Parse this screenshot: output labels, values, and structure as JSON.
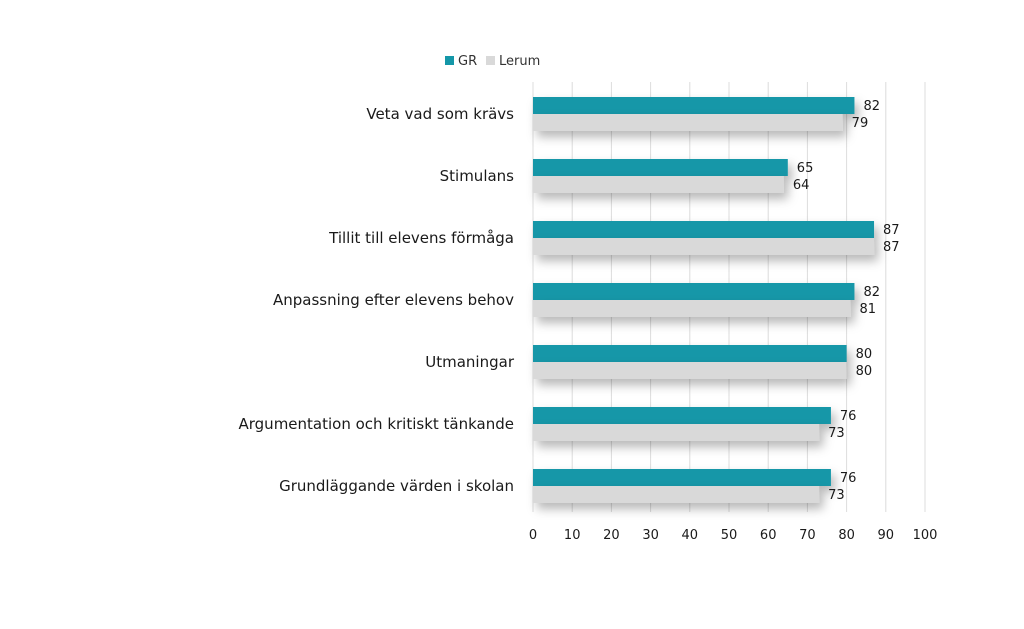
{
  "chart_data": {
    "type": "bar",
    "orientation": "horizontal",
    "categories": [
      "Veta vad som krävs",
      "Stimulans",
      "Tillit till elevens förmåga",
      "Anpassning efter elevens behov",
      "Utmaningar",
      "Argumentation och kritiskt tänkande",
      "Grundläggande värden i skolan"
    ],
    "series": [
      {
        "name": "GR",
        "color": "#1497a8",
        "values": [
          82,
          65,
          87,
          82,
          80,
          76,
          76
        ]
      },
      {
        "name": "Lerum",
        "color": "#d9d9d9",
        "values": [
          79,
          64,
          87,
          81,
          80,
          73,
          73
        ]
      }
    ],
    "xlim": [
      0,
      100
    ],
    "xticks": [
      0,
      10,
      20,
      30,
      40,
      50,
      60,
      70,
      80,
      90,
      100
    ],
    "grid": true,
    "legend_position": "top",
    "data_labels": true
  }
}
